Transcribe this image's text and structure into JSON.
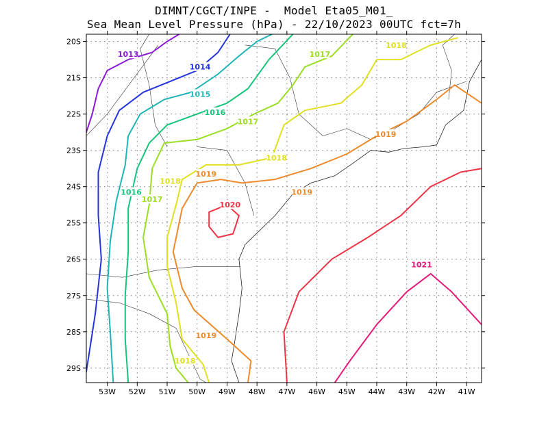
{
  "header": {
    "title_line1": "DIMNT/CGCT/INPE -  Model Eta05_M01_",
    "title_line2": "Sea Mean Level Pressure (hPa) - 22/10/2023 00UTC fct=7h"
  },
  "map": {
    "lon_range": [
      -53.7,
      -40.5
    ],
    "lat_range": [
      -29.4,
      -19.8
    ],
    "lon_ticks": [
      {
        "value": -53,
        "label": "53W"
      },
      {
        "value": -52,
        "label": "52W"
      },
      {
        "value": -51,
        "label": "51W"
      },
      {
        "value": -50,
        "label": "50W"
      },
      {
        "value": -49,
        "label": "49W"
      },
      {
        "value": -48,
        "label": "48W"
      },
      {
        "value": -47,
        "label": "47W"
      },
      {
        "value": -46,
        "label": "46W"
      },
      {
        "value": -45,
        "label": "45W"
      },
      {
        "value": -44,
        "label": "44W"
      },
      {
        "value": -43,
        "label": "43W"
      },
      {
        "value": -42,
        "label": "42W"
      },
      {
        "value": -41,
        "label": "41W"
      }
    ],
    "lat_ticks": [
      {
        "value": -20,
        "label": "20S"
      },
      {
        "value": -21,
        "label": "21S"
      },
      {
        "value": -22,
        "label": "22S"
      },
      {
        "value": -23,
        "label": "23S"
      },
      {
        "value": -24,
        "label": "24S"
      },
      {
        "value": -25,
        "label": "25S"
      },
      {
        "value": -26,
        "label": "26S"
      },
      {
        "value": -27,
        "label": "27S"
      },
      {
        "value": -28,
        "label": "28S"
      },
      {
        "value": -29,
        "label": "29S"
      }
    ],
    "grid": true,
    "contours": [
      {
        "level": "1013",
        "color": "#8a1ad6",
        "pts": [
          [
            -53.7,
            -22.5
          ],
          [
            -53.5,
            -22.0
          ],
          [
            -53.3,
            -21.3
          ],
          [
            -53.0,
            -20.8
          ],
          [
            -52.3,
            -20.5
          ],
          [
            -51.5,
            -20.3
          ],
          [
            -51.0,
            -20.0
          ],
          [
            -50.6,
            -19.8
          ]
        ],
        "labels": [
          {
            "lon": -52.3,
            "lat": -20.35,
            "text": "1013"
          }
        ]
      },
      {
        "level": "1014",
        "color": "#2233dd",
        "pts": [
          [
            -53.7,
            -29.1
          ],
          [
            -53.4,
            -27.5
          ],
          [
            -53.2,
            -26.0
          ],
          [
            -53.3,
            -24.8
          ],
          [
            -53.3,
            -23.6
          ],
          [
            -53.0,
            -22.6
          ],
          [
            -52.6,
            -21.9
          ],
          [
            -51.8,
            -21.4
          ],
          [
            -50.9,
            -21.1
          ],
          [
            -50.0,
            -20.8
          ],
          [
            -49.3,
            -20.3
          ],
          [
            -48.9,
            -19.8
          ]
        ],
        "labels": [
          {
            "lon": -49.9,
            "lat": -20.7,
            "text": "1014"
          }
        ]
      },
      {
        "level": "1015",
        "color": "#1fb5b5",
        "pts": [
          [
            -52.8,
            -29.4
          ],
          [
            -52.9,
            -28.0
          ],
          [
            -53.0,
            -26.8
          ],
          [
            -52.9,
            -25.5
          ],
          [
            -52.7,
            -24.4
          ],
          [
            -52.4,
            -23.4
          ],
          [
            -52.3,
            -22.6
          ],
          [
            -51.9,
            -22.0
          ],
          [
            -51.1,
            -21.6
          ],
          [
            -50.2,
            -21.4
          ],
          [
            -49.3,
            -20.9
          ],
          [
            -48.6,
            -20.4
          ],
          [
            -48.0,
            -20.0
          ],
          [
            -47.5,
            -19.8
          ]
        ],
        "labels": [
          {
            "lon": -49.9,
            "lat": -21.45,
            "text": "1015"
          }
        ]
      },
      {
        "level": "1016",
        "color": "#15c47a",
        "pts": [
          [
            -52.3,
            -29.4
          ],
          [
            -52.4,
            -28.2
          ],
          [
            -52.4,
            -27.0
          ],
          [
            -52.3,
            -25.8
          ],
          [
            -52.3,
            -24.6
          ],
          [
            -52.0,
            -23.5
          ],
          [
            -51.6,
            -22.8
          ],
          [
            -51.0,
            -22.3
          ],
          [
            -50.0,
            -22.0
          ],
          [
            -49.0,
            -21.7
          ],
          [
            -48.3,
            -21.3
          ],
          [
            -47.6,
            -20.5
          ],
          [
            -46.8,
            -19.8
          ]
        ],
        "labels": [
          {
            "lon": -52.2,
            "lat": -24.15,
            "text": "1016"
          },
          {
            "lon": -49.4,
            "lat": -21.95,
            "text": "1016"
          }
        ]
      },
      {
        "level": "1017",
        "color": "#9ade22",
        "pts": [
          [
            -50.3,
            -29.4
          ],
          [
            -50.7,
            -29.0
          ],
          [
            -50.9,
            -28.4
          ],
          [
            -51.0,
            -27.5
          ],
          [
            -51.6,
            -26.5
          ],
          [
            -51.8,
            -25.4
          ],
          [
            -51.6,
            -24.5
          ],
          [
            -51.5,
            -23.5
          ],
          [
            -51.1,
            -22.8
          ],
          [
            -50.0,
            -22.7
          ],
          [
            -49.0,
            -22.4
          ],
          [
            -48.1,
            -22.0
          ],
          [
            -47.3,
            -21.7
          ],
          [
            -46.8,
            -21.2
          ],
          [
            -46.4,
            -20.7
          ],
          [
            -45.5,
            -20.4
          ],
          [
            -44.8,
            -19.8
          ]
        ],
        "labels": [
          {
            "lon": -51.5,
            "lat": -24.35,
            "text": "1017"
          },
          {
            "lon": -48.3,
            "lat": -22.2,
            "text": "1017"
          },
          {
            "lon": -45.9,
            "lat": -20.35,
            "text": "1017"
          }
        ]
      },
      {
        "level": "1018",
        "color": "#e0e020",
        "pts": [
          [
            -49.6,
            -29.4
          ],
          [
            -49.8,
            -28.9
          ],
          [
            -50.5,
            -28.2
          ],
          [
            -50.7,
            -27.2
          ],
          [
            -51.0,
            -26.2
          ],
          [
            -51.0,
            -25.4
          ],
          [
            -50.7,
            -24.5
          ],
          [
            -50.5,
            -23.8
          ],
          [
            -49.7,
            -23.4
          ],
          [
            -48.6,
            -23.4
          ],
          [
            -47.5,
            -23.2
          ],
          [
            -47.1,
            -22.3
          ],
          [
            -46.4,
            -21.9
          ],
          [
            -45.2,
            -21.7
          ],
          [
            -44.5,
            -21.2
          ],
          [
            -44.0,
            -20.5
          ],
          [
            -43.2,
            -20.5
          ],
          [
            -42.2,
            -20.1
          ],
          [
            -41.3,
            -19.9
          ]
        ],
        "labels": [
          {
            "lon": -50.9,
            "lat": -23.85,
            "text": "1018"
          },
          {
            "lon": -47.35,
            "lat": -23.2,
            "text": "1018"
          },
          {
            "lon": -43.35,
            "lat": -20.1,
            "text": "1018"
          },
          {
            "lon": -50.4,
            "lat": -28.8,
            "text": "1018"
          }
        ]
      },
      {
        "level": "1019",
        "color": "#ee8a2c",
        "pts": [
          [
            -48.3,
            -29.4
          ],
          [
            -48.2,
            -28.8
          ],
          [
            -49.0,
            -28.2
          ],
          [
            -50.1,
            -27.4
          ],
          [
            -50.5,
            -26.8
          ],
          [
            -50.8,
            -25.8
          ],
          [
            -50.5,
            -24.6
          ],
          [
            -50.0,
            -23.9
          ],
          [
            -49.2,
            -23.8
          ],
          [
            -48.5,
            -23.9
          ],
          [
            -47.4,
            -23.8
          ],
          [
            -46.2,
            -23.5
          ],
          [
            -45.0,
            -23.1
          ],
          [
            -44.0,
            -22.6
          ],
          [
            -43.0,
            -22.2
          ],
          [
            -42.0,
            -21.6
          ],
          [
            -41.4,
            -21.2
          ],
          [
            -40.5,
            -21.7
          ]
        ],
        "labels": [
          {
            "lon": -49.7,
            "lat": -23.65,
            "text": "1019"
          },
          {
            "lon": -46.5,
            "lat": -24.15,
            "text": "1019"
          },
          {
            "lon": -43.7,
            "lat": -22.55,
            "text": "1019"
          },
          {
            "lon": -49.7,
            "lat": -28.1,
            "text": "1019"
          }
        ]
      },
      {
        "level": "1020",
        "color": "#ee3344",
        "pts": [
          [
            -49.6,
            -25.1
          ],
          [
            -49.6,
            -24.7
          ],
          [
            -49.0,
            -24.5
          ],
          [
            -48.6,
            -24.8
          ],
          [
            -48.8,
            -25.3
          ],
          [
            -49.3,
            -25.4
          ],
          [
            -49.6,
            -25.1
          ]
        ],
        "labels": [
          {
            "lon": -48.9,
            "lat": -24.5,
            "text": "1020"
          }
        ]
      },
      {
        "level": "1020",
        "color": "#ee3344",
        "pts": [
          [
            -47.0,
            -29.4
          ],
          [
            -47.1,
            -28.0
          ],
          [
            -46.6,
            -26.9
          ],
          [
            -45.5,
            -26.0
          ],
          [
            -44.3,
            -25.4
          ],
          [
            -43.2,
            -24.8
          ],
          [
            -42.2,
            -24.0
          ],
          [
            -41.2,
            -23.6
          ],
          [
            -40.5,
            -23.5
          ]
        ],
        "labels": []
      },
      {
        "level": "1021",
        "color": "#e6187a",
        "pts": [
          [
            -45.4,
            -29.4
          ],
          [
            -44.9,
            -28.8
          ],
          [
            -44.0,
            -27.8
          ],
          [
            -43.0,
            -26.9
          ],
          [
            -42.2,
            -26.4
          ],
          [
            -41.5,
            -26.9
          ],
          [
            -40.5,
            -27.8
          ]
        ],
        "labels": [
          {
            "lon": -42.5,
            "lat": -26.15,
            "text": "1021"
          }
        ]
      }
    ],
    "coastline": [
      [
        -48.6,
        -29.4
      ],
      [
        -48.85,
        -28.8
      ],
      [
        -48.75,
        -28.3
      ],
      [
        -48.6,
        -27.5
      ],
      [
        -48.5,
        -26.8
      ],
      [
        -48.6,
        -26.0
      ],
      [
        -48.4,
        -25.6
      ],
      [
        -47.9,
        -25.2
      ],
      [
        -47.4,
        -24.8
      ],
      [
        -46.8,
        -24.2
      ],
      [
        -46.2,
        -23.9
      ],
      [
        -45.4,
        -23.7
      ],
      [
        -44.7,
        -23.3
      ],
      [
        -44.2,
        -23.0
      ],
      [
        -43.6,
        -23.05
      ],
      [
        -43.1,
        -22.95
      ],
      [
        -42.4,
        -22.9
      ],
      [
        -42.0,
        -22.85
      ],
      [
        -41.7,
        -22.3
      ],
      [
        -41.1,
        -21.9
      ],
      [
        -40.9,
        -21.1
      ],
      [
        -40.5,
        -20.5
      ]
    ],
    "state_borders": [
      [
        [
          -53.7,
          -26.4
        ],
        [
          -52.5,
          -26.5
        ],
        [
          -51.3,
          -26.3
        ],
        [
          -50.0,
          -26.2
        ],
        [
          -48.55,
          -26.2
        ]
      ],
      [
        [
          -53.7,
          -27.1
        ],
        [
          -52.6,
          -27.2
        ],
        [
          -51.6,
          -27.5
        ],
        [
          -50.7,
          -27.9
        ],
        [
          -49.9,
          -29.3
        ],
        [
          -49.7,
          -29.4
        ]
      ],
      [
        [
          -50.0,
          -22.9
        ],
        [
          -49.0,
          -23.0
        ],
        [
          -48.4,
          -23.9
        ],
        [
          -48.1,
          -24.8
        ]
      ],
      [
        [
          -51.0,
          -22.9
        ],
        [
          -51.4,
          -22.3
        ],
        [
          -51.6,
          -21.2
        ],
        [
          -51.9,
          -20.2
        ],
        [
          -51.6,
          -19.8
        ]
      ],
      [
        [
          -48.4,
          -20.1
        ],
        [
          -47.4,
          -20.2
        ],
        [
          -46.9,
          -21.0
        ],
        [
          -46.6,
          -22.0
        ],
        [
          -45.8,
          -22.6
        ],
        [
          -45.0,
          -22.4
        ],
        [
          -44.2,
          -22.7
        ],
        [
          -43.6,
          -22.5
        ],
        [
          -42.6,
          -22.0
        ],
        [
          -42.0,
          -21.4
        ],
        [
          -41.0,
          -21.1
        ]
      ],
      [
        [
          -41.6,
          -21.6
        ],
        [
          -41.5,
          -20.8
        ],
        [
          -41.8,
          -20.1
        ],
        [
          -41.4,
          -19.8
        ]
      ],
      [
        [
          -53.7,
          -22.6
        ],
        [
          -53.0,
          -22.0
        ],
        [
          -52.1,
          -21.0
        ],
        [
          -51.3,
          -20.1
        ]
      ]
    ]
  }
}
